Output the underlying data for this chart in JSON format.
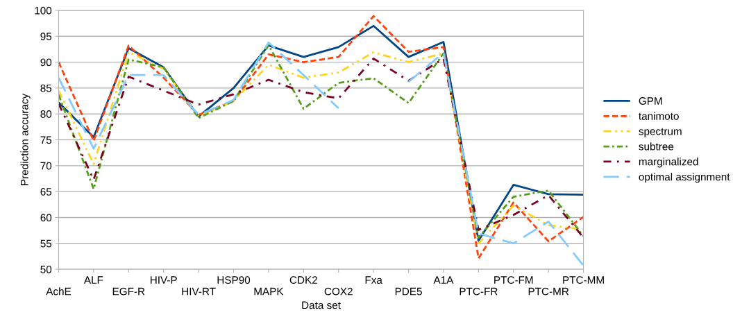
{
  "chart_data": {
    "type": "line",
    "xlabel": "Data set",
    "ylabel": "Prediction accuracy",
    "categories": [
      "AchE",
      "ALF",
      "EGF-R",
      "HIV-P",
      "HIV-RT",
      "HSP90",
      "MAPK",
      "CDK2",
      "COX2",
      "Fxa",
      "PDE5",
      "A1A",
      "PTC-FR",
      "PTC-FM",
      "PTC-MR",
      "PTC-MM"
    ],
    "series": [
      {
        "name": "GPM",
        "color": "#004586",
        "line_style": "solid",
        "values": [
          82.2,
          75.5,
          92.7,
          89,
          79.5,
          85,
          93.2,
          91,
          92.9,
          97,
          91,
          93.9,
          55.5,
          66.3,
          64.5,
          64.4
        ]
      },
      {
        "name": "tanimoto",
        "color": "#ff420e",
        "line_style": "dashed",
        "values": [
          90,
          74.8,
          93.2,
          87,
          79.8,
          82.5,
          91.5,
          90,
          91,
          98.9,
          92,
          92.9,
          52.1,
          62.9,
          55.4,
          60.1
        ]
      },
      {
        "name": "spectrum",
        "color": "#ffd320",
        "line_style": "dashdotdot",
        "values": [
          84.5,
          70.3,
          92,
          88.7,
          79.5,
          82.5,
          89.5,
          87,
          88,
          91.9,
          90,
          91.7,
          55,
          62.3,
          58.5,
          57.7
        ]
      },
      {
        "name": "subtree",
        "color": "#579d1c",
        "line_style": "dashdotted",
        "values": [
          83.7,
          65.5,
          90.5,
          89,
          79.2,
          82.5,
          93.3,
          81,
          86,
          86.9,
          82.1,
          91.7,
          56.1,
          64,
          65.2,
          56.4
        ]
      },
      {
        "name": "marginalized",
        "color": "#7e0021",
        "line_style": "dashdot",
        "values": [
          82,
          67.3,
          87.2,
          84.5,
          81.8,
          83.8,
          86.6,
          84.2,
          83,
          90.7,
          86.4,
          90.7,
          57.6,
          60.5,
          64.3,
          56.1
        ]
      },
      {
        "name": "optimal assignment",
        "color": "#83caff",
        "line_style": "longdash",
        "values": [
          87,
          73.3,
          87.5,
          87.5,
          79.8,
          82.7,
          93.8,
          87.5,
          81.1,
          null,
          86.2,
          91.8,
          56.9,
          55,
          59.2,
          50.7
        ]
      }
    ],
    "ylim": [
      50,
      100
    ],
    "yticks": [
      50,
      55,
      60,
      65,
      70,
      75,
      80,
      85,
      90,
      95,
      100
    ],
    "grid": "y",
    "legend": "right",
    "marker": "none"
  }
}
